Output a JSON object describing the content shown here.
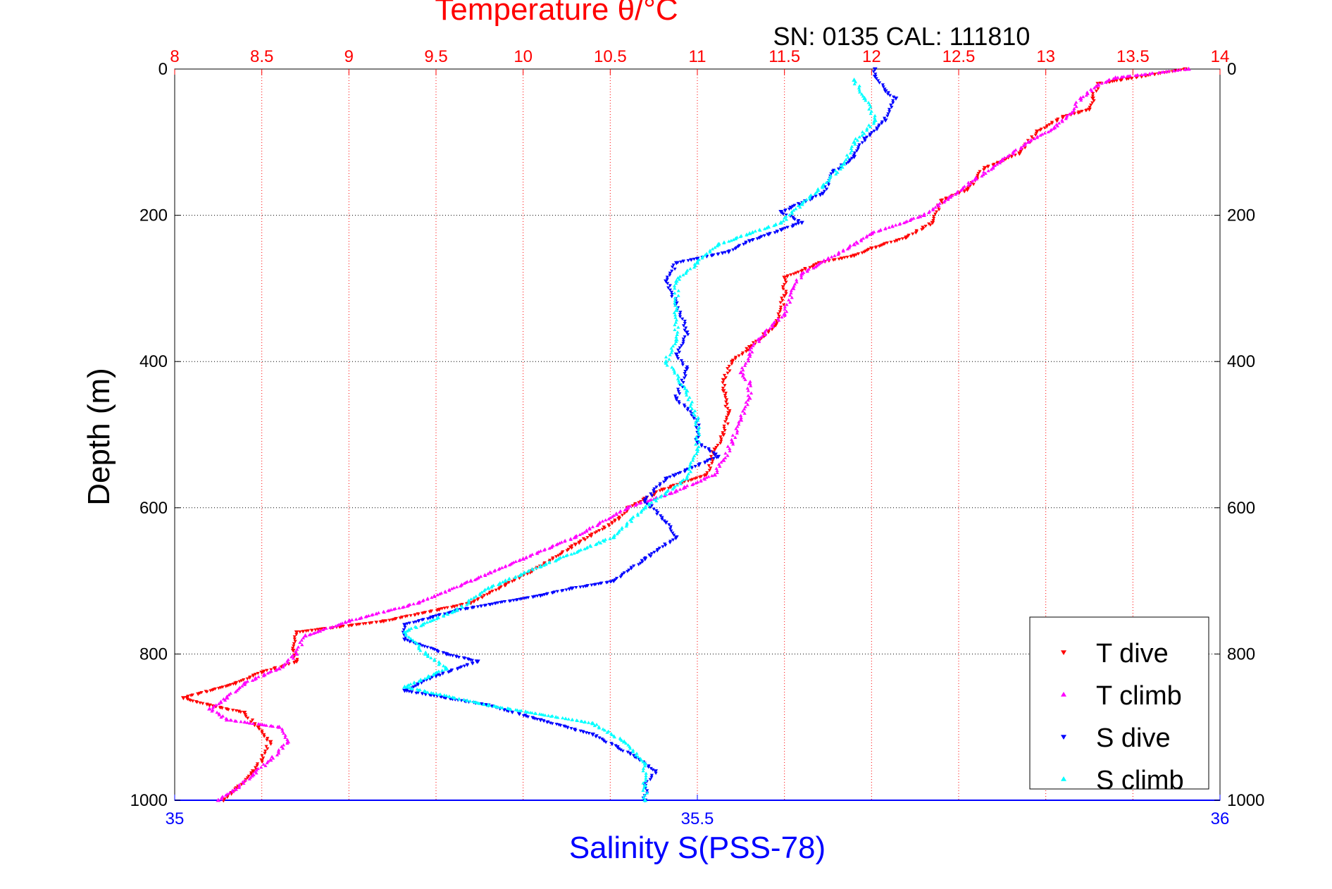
{
  "chart_data": {
    "type": "scatter",
    "title": "Temperature θ/°C",
    "subtitle": "SN: 0135  CAL: 111810",
    "ylabel": "Depth (m)",
    "xlabel": "Salinity S(PSS-78)",
    "grid": true,
    "legend_position": "bottom-right",
    "y_axis": {
      "range": [
        0,
        1000
      ],
      "inverted": true,
      "ticks": [
        "0",
        "200",
        "400",
        "600",
        "800",
        "1000"
      ]
    },
    "top_axis": {
      "quantity": "Temperature",
      "range": [
        8,
        14
      ],
      "color": "#ff0000",
      "ticks": [
        "8",
        "8.5",
        "9",
        "9.5",
        "10",
        "10.5",
        "11",
        "11.5",
        "12",
        "12.5",
        "13",
        "13.5",
        "14"
      ]
    },
    "bottom_axis": {
      "quantity": "Salinity",
      "range": [
        35,
        36
      ],
      "color": "#0000ff",
      "ticks": [
        "35",
        "35.5",
        "36"
      ]
    },
    "series": [
      {
        "name": "T dive",
        "axis": "top",
        "color": "#ff0000",
        "marker": "triangle-down",
        "points": [
          [
            13.8,
            0
          ],
          [
            13.55,
            10
          ],
          [
            13.3,
            20
          ],
          [
            13.27,
            40
          ],
          [
            13.25,
            55
          ],
          [
            13.1,
            65
          ],
          [
            12.95,
            85
          ],
          [
            12.85,
            115
          ],
          [
            12.65,
            135
          ],
          [
            12.55,
            165
          ],
          [
            12.4,
            180
          ],
          [
            12.35,
            210
          ],
          [
            12.2,
            230
          ],
          [
            12.0,
            245
          ],
          [
            11.9,
            255
          ],
          [
            11.7,
            265
          ],
          [
            11.5,
            285
          ],
          [
            11.5,
            310
          ],
          [
            11.45,
            350
          ],
          [
            11.3,
            380
          ],
          [
            11.2,
            400
          ],
          [
            11.15,
            425
          ],
          [
            11.15,
            440
          ],
          [
            11.18,
            470
          ],
          [
            11.15,
            500
          ],
          [
            11.1,
            520
          ],
          [
            11.05,
            555
          ],
          [
            10.8,
            575
          ],
          [
            10.6,
            600
          ],
          [
            10.55,
            615
          ],
          [
            10.3,
            650
          ],
          [
            10.1,
            680
          ],
          [
            9.9,
            705
          ],
          [
            9.7,
            730
          ],
          [
            9.2,
            755
          ],
          [
            8.7,
            770
          ],
          [
            8.68,
            795
          ],
          [
            8.7,
            810
          ],
          [
            8.5,
            825
          ],
          [
            8.35,
            840
          ],
          [
            8.05,
            860
          ],
          [
            8.2,
            870
          ],
          [
            8.4,
            880
          ],
          [
            8.48,
            900
          ],
          [
            8.55,
            920
          ],
          [
            8.5,
            945
          ],
          [
            8.45,
            960
          ],
          [
            8.35,
            985
          ],
          [
            8.28,
            1000
          ]
        ]
      },
      {
        "name": "T climb",
        "axis": "top",
        "color": "#ff00ff",
        "marker": "triangle-up",
        "points": [
          [
            13.82,
            0
          ],
          [
            13.4,
            12
          ],
          [
            13.3,
            22
          ],
          [
            13.2,
            40
          ],
          [
            13.15,
            60
          ],
          [
            13.05,
            80
          ],
          [
            12.9,
            100
          ],
          [
            12.75,
            125
          ],
          [
            12.6,
            150
          ],
          [
            12.45,
            175
          ],
          [
            12.3,
            200
          ],
          [
            12.0,
            225
          ],
          [
            11.9,
            240
          ],
          [
            11.75,
            260
          ],
          [
            11.6,
            280
          ],
          [
            11.55,
            300
          ],
          [
            11.5,
            335
          ],
          [
            11.35,
            370
          ],
          [
            11.3,
            390
          ],
          [
            11.25,
            415
          ],
          [
            11.3,
            430
          ],
          [
            11.3,
            450
          ],
          [
            11.25,
            480
          ],
          [
            11.2,
            510
          ],
          [
            11.15,
            535
          ],
          [
            11.1,
            555
          ],
          [
            10.85,
            580
          ],
          [
            10.6,
            600
          ],
          [
            10.3,
            640
          ],
          [
            10.0,
            670
          ],
          [
            9.7,
            700
          ],
          [
            9.4,
            730
          ],
          [
            9.0,
            755
          ],
          [
            8.75,
            775
          ],
          [
            8.7,
            800
          ],
          [
            8.6,
            820
          ],
          [
            8.4,
            840
          ],
          [
            8.3,
            860
          ],
          [
            8.2,
            875
          ],
          [
            8.3,
            890
          ],
          [
            8.6,
            900
          ],
          [
            8.65,
            920
          ],
          [
            8.55,
            945
          ],
          [
            8.45,
            965
          ],
          [
            8.35,
            985
          ],
          [
            8.25,
            1000
          ]
        ]
      },
      {
        "name": "S dive",
        "axis": "bottom",
        "color": "#0000ff",
        "marker": "triangle-down",
        "points": [
          [
            35.67,
            0
          ],
          [
            35.67,
            10
          ],
          [
            35.68,
            30
          ],
          [
            35.69,
            40
          ],
          [
            35.68,
            70
          ],
          [
            35.66,
            95
          ],
          [
            35.65,
            120
          ],
          [
            35.63,
            140
          ],
          [
            35.62,
            170
          ],
          [
            35.58,
            195
          ],
          [
            35.6,
            210
          ],
          [
            35.55,
            235
          ],
          [
            35.53,
            250
          ],
          [
            35.48,
            265
          ],
          [
            35.47,
            290
          ],
          [
            35.48,
            320
          ],
          [
            35.49,
            360
          ],
          [
            35.48,
            390
          ],
          [
            35.49,
            410
          ],
          [
            35.48,
            450
          ],
          [
            35.5,
            480
          ],
          [
            35.5,
            510
          ],
          [
            35.52,
            530
          ],
          [
            35.47,
            560
          ],
          [
            35.45,
            590
          ],
          [
            35.47,
            620
          ],
          [
            35.48,
            640
          ],
          [
            35.45,
            670
          ],
          [
            35.42,
            700
          ],
          [
            35.38,
            710
          ],
          [
            35.35,
            720
          ],
          [
            35.27,
            740
          ],
          [
            35.22,
            760
          ],
          [
            35.22,
            780
          ],
          [
            35.26,
            800
          ],
          [
            35.29,
            810
          ],
          [
            35.25,
            830
          ],
          [
            35.22,
            850
          ],
          [
            35.3,
            870
          ],
          [
            35.35,
            890
          ],
          [
            35.4,
            910
          ],
          [
            35.44,
            940
          ],
          [
            35.46,
            960
          ],
          [
            35.45,
            980
          ],
          [
            35.45,
            1000
          ]
        ]
      },
      {
        "name": "S climb",
        "axis": "bottom",
        "color": "#00ffff",
        "marker": "triangle-up",
        "points": [
          [
            35.65,
            15
          ],
          [
            35.66,
            40
          ],
          [
            35.67,
            70
          ],
          [
            35.65,
            100
          ],
          [
            35.64,
            130
          ],
          [
            35.62,
            160
          ],
          [
            35.6,
            185
          ],
          [
            35.58,
            210
          ],
          [
            35.55,
            225
          ],
          [
            35.52,
            240
          ],
          [
            35.5,
            265
          ],
          [
            35.48,
            290
          ],
          [
            35.48,
            330
          ],
          [
            35.48,
            370
          ],
          [
            35.47,
            400
          ],
          [
            35.49,
            440
          ],
          [
            35.5,
            480
          ],
          [
            35.5,
            520
          ],
          [
            35.49,
            560
          ],
          [
            35.45,
            600
          ],
          [
            35.42,
            640
          ],
          [
            35.35,
            680
          ],
          [
            35.3,
            710
          ],
          [
            35.27,
            740
          ],
          [
            35.22,
            770
          ],
          [
            35.24,
            800
          ],
          [
            35.26,
            820
          ],
          [
            35.22,
            845
          ],
          [
            35.3,
            870
          ],
          [
            35.4,
            895
          ],
          [
            35.43,
            920
          ],
          [
            35.45,
            950
          ],
          [
            35.45,
            980
          ],
          [
            35.45,
            1000
          ]
        ]
      }
    ]
  }
}
